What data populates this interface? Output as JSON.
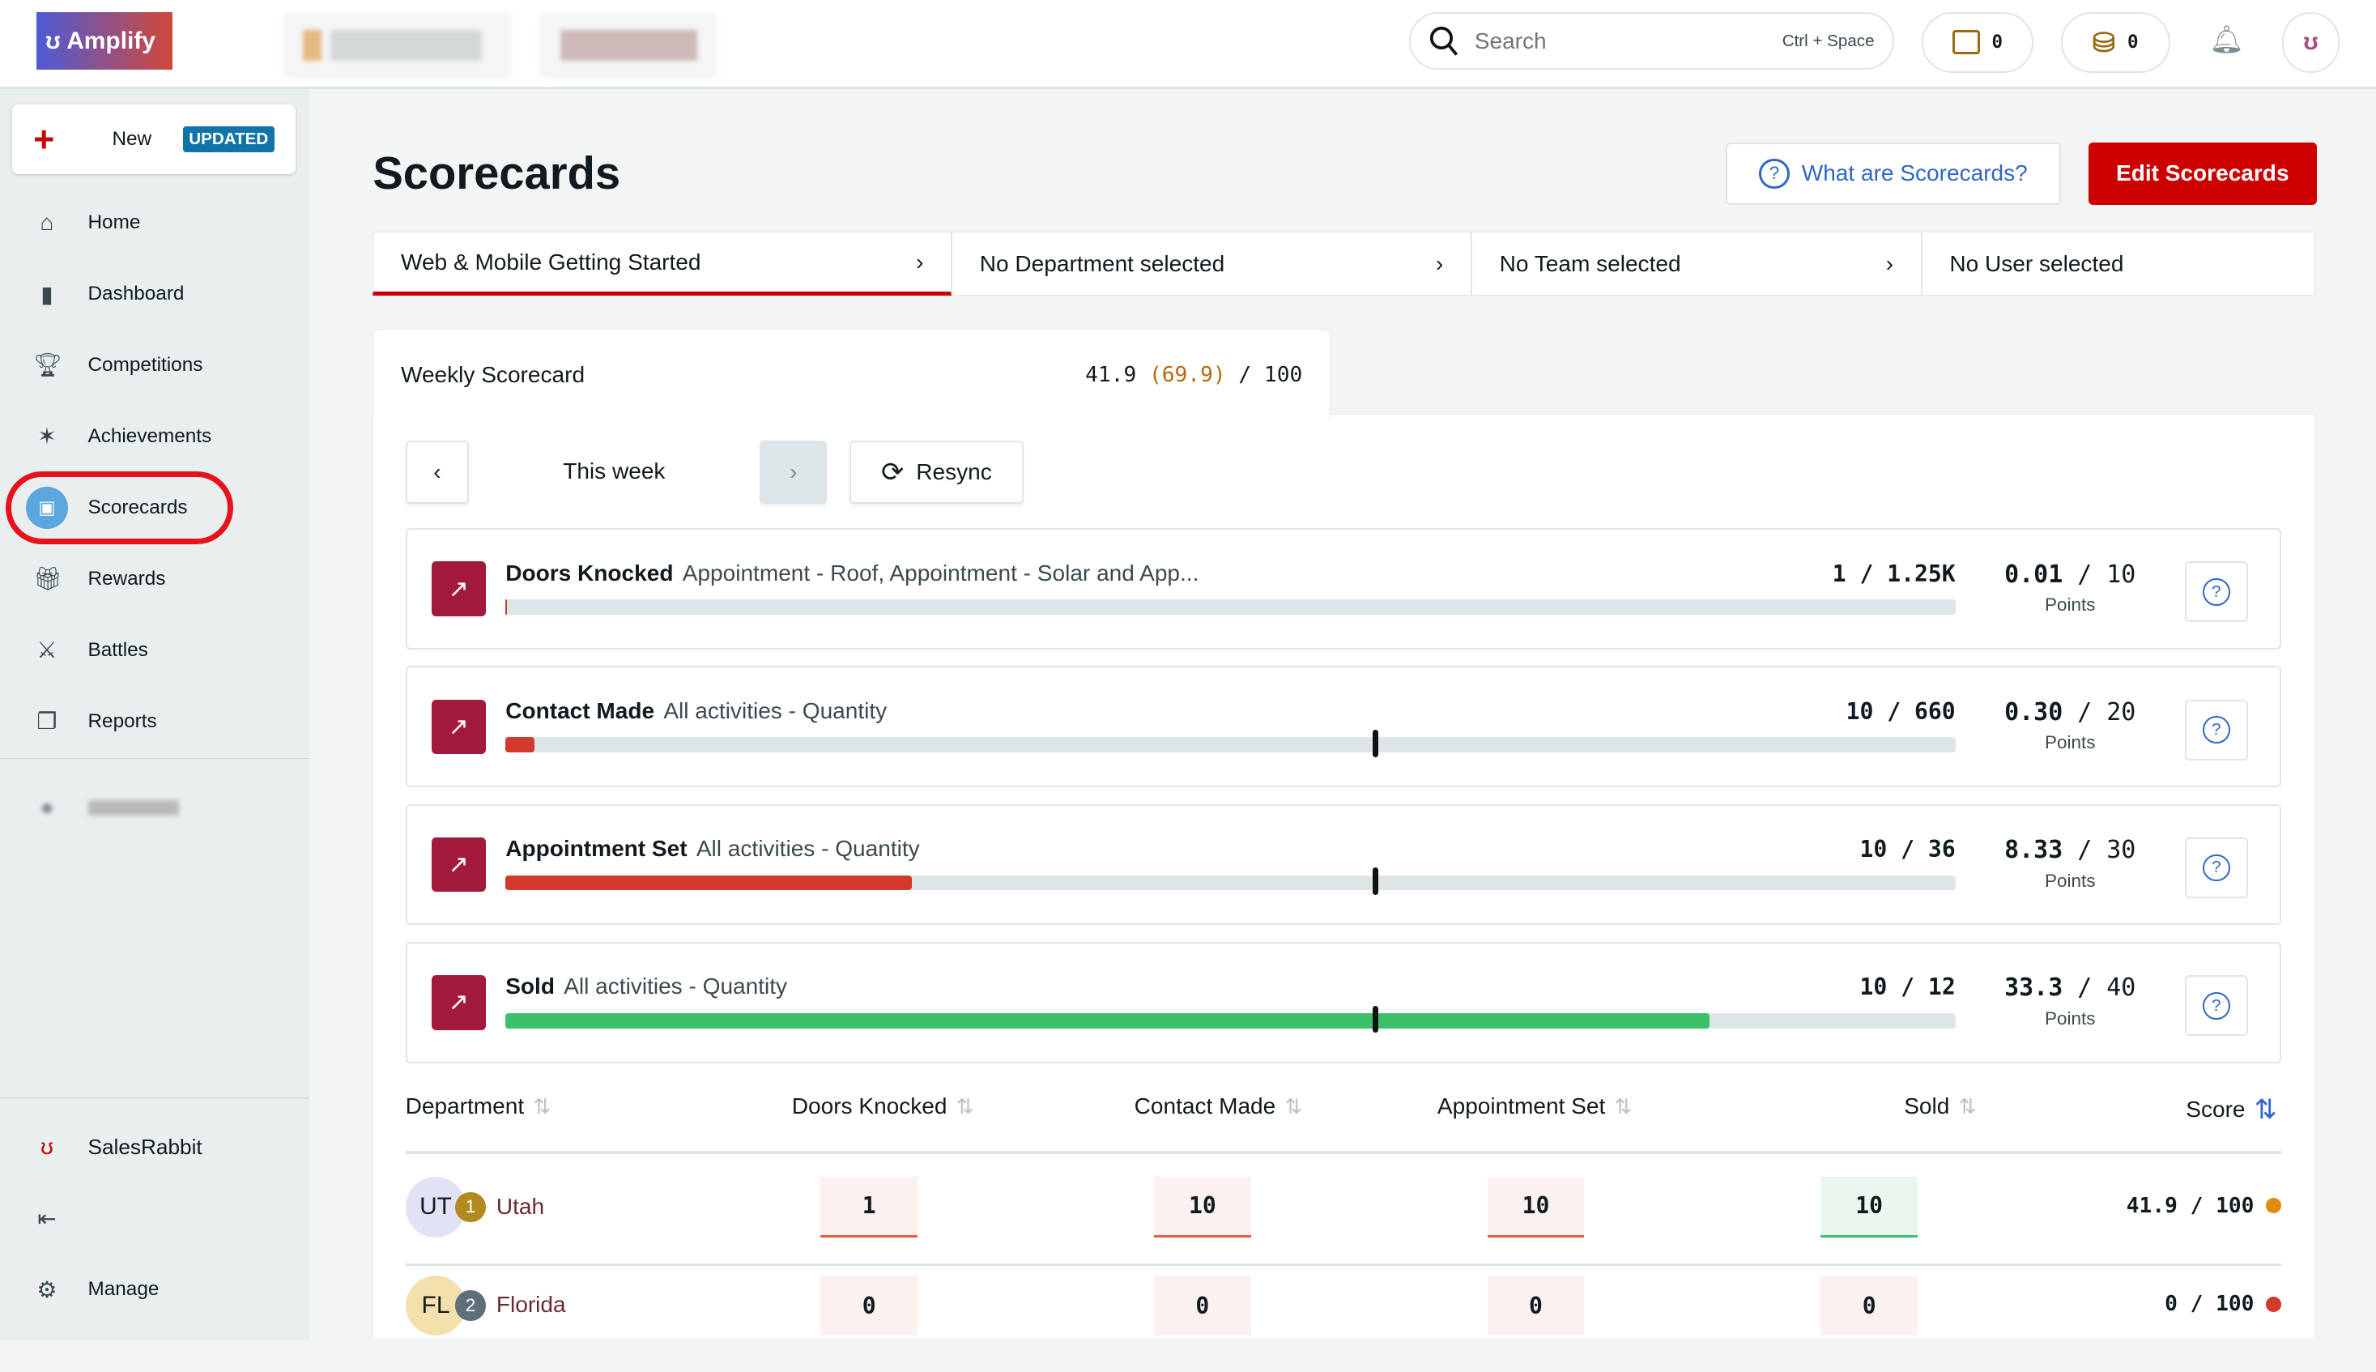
{
  "app": {
    "name": "Amplify"
  },
  "header": {
    "search_placeholder": "Search",
    "search_shortcut": "Ctrl + Space",
    "wallet_count": "0",
    "coins_count": "0"
  },
  "sidebar": {
    "new_label": "New",
    "new_badge": "UPDATED",
    "items": [
      {
        "label": "Home",
        "icon": "home-icon"
      },
      {
        "label": "Dashboard",
        "icon": "bar-chart-icon"
      },
      {
        "label": "Competitions",
        "icon": "trophy-icon"
      },
      {
        "label": "Achievements",
        "icon": "party-icon"
      },
      {
        "label": "Scorecards",
        "icon": "scorecard-icon",
        "active": true
      },
      {
        "label": "Rewards",
        "icon": "gift-icon"
      },
      {
        "label": "Battles",
        "icon": "swords-icon"
      },
      {
        "label": "Reports",
        "icon": "reports-icon"
      }
    ],
    "org_label": "SalesRabbit",
    "manage_label": "Manage"
  },
  "page": {
    "title": "Scorecards",
    "help_button": "What are Scorecards?",
    "edit_button": "Edit Scorecards",
    "filters": [
      "Web & Mobile Getting Started",
      "No Department selected",
      "No Team selected",
      "No User selected"
    ],
    "tab": {
      "label": "Weekly Scorecard",
      "score": "41.9",
      "projected": "(69.9)",
      "max": "/ 100"
    },
    "period": {
      "label": "This week",
      "resync": "Resync"
    },
    "metrics": [
      {
        "name": "Doors Knocked",
        "desc": "Appointment - Roof, Appointment - Solar and App...",
        "count": "1 / 1.25K",
        "points": "0.01",
        "max": "/ 10",
        "progress": 0.0008,
        "target": 0.6,
        "color": "#d33a2c"
      },
      {
        "name": "Contact Made",
        "desc": "All activities - Quantity",
        "count": "10 / 660",
        "points": "0.30",
        "max": "/ 20",
        "progress": 0.02,
        "target": 0.6,
        "color": "#d33a2c"
      },
      {
        "name": "Appointment Set",
        "desc": "All activities - Quantity",
        "count": "10 / 36",
        "points": "8.33",
        "max": "/ 30",
        "progress": 0.28,
        "target": 0.6,
        "color": "#d33a2c"
      },
      {
        "name": "Sold",
        "desc": "All activities - Quantity",
        "count": "10 / 12",
        "points": "33.3",
        "max": "/ 40",
        "progress": 0.83,
        "target": 0.6,
        "color": "#3cc06a"
      }
    ],
    "points_label": "Points",
    "table": {
      "headers": [
        "Department",
        "Doors Knocked",
        "Contact Made",
        "Appointment Set",
        "Sold",
        "Score"
      ],
      "rows": [
        {
          "initials": "UT",
          "rank": "1",
          "name": "Utah",
          "values": [
            "1",
            "10",
            "10",
            "10"
          ],
          "score": "41.9 / 100",
          "status_color": "#e38a0b"
        },
        {
          "initials": "FL",
          "rank": "2",
          "name": "Florida",
          "values": [
            "0",
            "0",
            "0",
            "0"
          ],
          "score": "0 / 100",
          "status_color": "#d33a2c"
        }
      ]
    }
  }
}
